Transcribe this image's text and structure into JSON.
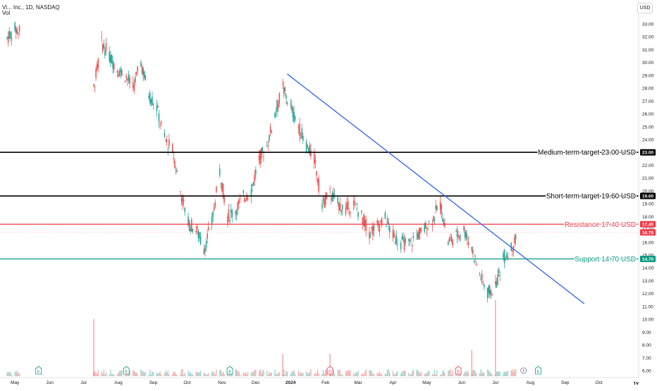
{
  "header": {
    "symbol": "Vi... Inc., 1D, NASDAQ",
    "volume_label": "Vol"
  },
  "currency_button": "USD",
  "colors": {
    "up": "#26a69a",
    "down": "#ef5350",
    "trendline": "#2962ff",
    "resistance": "#f23645",
    "support": "#089981",
    "target": "#000000",
    "price_tag": "#f23645"
  },
  "chart_data": {
    "type": "candlestick",
    "title": "",
    "subtitle": "",
    "xlabel": "",
    "ylabel": "",
    "x_ticks": [
      "May",
      "Jun",
      "Jul",
      "Aug",
      "Sep",
      "Oct",
      "Nov",
      "Dec",
      "2024",
      "Feb",
      "Mar",
      "Apr",
      "May",
      "Jun",
      "Jul",
      "Aug",
      "Sep",
      "Oct"
    ],
    "y_ticks": [
      "6.00",
      "7.00",
      "8.00",
      "9.00",
      "10.00",
      "11.00",
      "12.00",
      "13.00",
      "14.00",
      "15.00",
      "16.00",
      "17.00",
      "18.00",
      "19.00",
      "20.00",
      "21.00",
      "22.00",
      "23.00",
      "24.00",
      "25.00",
      "26.00",
      "27.00",
      "28.00",
      "29.00",
      "30.00",
      "31.00",
      "32.00",
      "33.00"
    ],
    "y_range": [
      6.0,
      33.0
    ],
    "x_range": [
      "2023-04-24",
      "2024-10-20"
    ],
    "grid": false,
    "currency": "USD",
    "last_price": "16.76",
    "price_series": [
      [
        "2023-04-24",
        31.9
      ],
      [
        "2023-05-01",
        32.6
      ],
      [
        "2023-05-08",
        32.3
      ],
      [
        "2023-07-10",
        28.0
      ],
      [
        "2023-07-17",
        31.5
      ],
      [
        "2023-07-24",
        30.5
      ],
      [
        "2023-07-31",
        29.5
      ],
      [
        "2023-08-07",
        29.0
      ],
      [
        "2023-08-14",
        28.0
      ],
      [
        "2023-08-21",
        30.0
      ],
      [
        "2023-08-28",
        27.5
      ],
      [
        "2023-09-04",
        26.5
      ],
      [
        "2023-09-11",
        24.0
      ],
      [
        "2023-09-18",
        23.2
      ],
      [
        "2023-09-25",
        20.0
      ],
      [
        "2023-10-02",
        17.5
      ],
      [
        "2023-10-09",
        17.0
      ],
      [
        "2023-10-16",
        15.5
      ],
      [
        "2023-10-23",
        17.5
      ],
      [
        "2023-10-30",
        21.5
      ],
      [
        "2023-11-06",
        18.0
      ],
      [
        "2023-11-13",
        18.5
      ],
      [
        "2023-11-20",
        19.5
      ],
      [
        "2023-11-27",
        20.0
      ],
      [
        "2023-12-04",
        22.5
      ],
      [
        "2023-12-11",
        23.5
      ],
      [
        "2023-12-18",
        26.0
      ],
      [
        "2023-12-25",
        28.0
      ],
      [
        "2024-01-01",
        26.5
      ],
      [
        "2024-01-08",
        25.0
      ],
      [
        "2024-01-15",
        23.5
      ],
      [
        "2024-01-22",
        22.5
      ],
      [
        "2024-01-29",
        19.0
      ],
      [
        "2024-02-05",
        19.8
      ],
      [
        "2024-02-12",
        19.0
      ],
      [
        "2024-02-19",
        18.5
      ],
      [
        "2024-02-26",
        19.0
      ],
      [
        "2024-03-04",
        18.0
      ],
      [
        "2024-03-11",
        16.8
      ],
      [
        "2024-03-18",
        17.2
      ],
      [
        "2024-03-25",
        17.8
      ],
      [
        "2024-04-01",
        16.5
      ],
      [
        "2024-04-08",
        16.0
      ],
      [
        "2024-04-15",
        15.8
      ],
      [
        "2024-04-22",
        16.5
      ],
      [
        "2024-04-29",
        17.0
      ],
      [
        "2024-05-06",
        17.8
      ],
      [
        "2024-05-13",
        19.0
      ],
      [
        "2024-05-20",
        16.0
      ],
      [
        "2024-05-27",
        16.5
      ],
      [
        "2024-06-03",
        17.0
      ],
      [
        "2024-06-10",
        15.5
      ],
      [
        "2024-06-17",
        13.5
      ],
      [
        "2024-06-24",
        12.0
      ],
      [
        "2024-07-01",
        12.5
      ],
      [
        "2024-07-08",
        14.8
      ],
      [
        "2024-07-15",
        15.5
      ],
      [
        "2024-07-22",
        16.8
      ]
    ],
    "volume_spikes": [
      [
        "2023-07-10",
        10.0
      ],
      [
        "2023-12-25",
        7.3
      ],
      [
        "2024-02-05",
        7.3
      ],
      [
        "2024-06-10",
        7.6
      ],
      [
        "2024-07-01",
        11.5
      ]
    ],
    "horizontal_levels": [
      {
        "label": "Medium-term target 23.00 USD",
        "tag": "23.00",
        "value": 23.0,
        "color": "#000000"
      },
      {
        "label": "Short-term target 19.60 USD",
        "tag": "19.60",
        "value": 19.6,
        "color": "#000000"
      },
      {
        "label": "Resistance 17.40 USD",
        "tag": "17.40",
        "value": 17.4,
        "color": "#f23645"
      },
      {
        "label": "Support 14.70 USD",
        "tag": "14.70",
        "value": 14.7,
        "color": "#089981"
      }
    ],
    "trendline": {
      "from": [
        "2023-12-29",
        29.1
      ],
      "to": [
        "2024-09-18",
        11.2
      ],
      "color": "#2962ff"
    },
    "event_markers": [
      {
        "date": "2023-05-22",
        "icon": "E"
      },
      {
        "date": "2023-08-08",
        "icon": "E"
      },
      {
        "date": "2023-11-08",
        "icon": "E"
      },
      {
        "date": "2024-02-05",
        "icon": "D"
      },
      {
        "date": "2024-05-29",
        "icon": "D"
      },
      {
        "date": "2024-07-26",
        "icon": "lightning"
      },
      {
        "date": "2024-08-08",
        "icon": "E"
      }
    ]
  }
}
